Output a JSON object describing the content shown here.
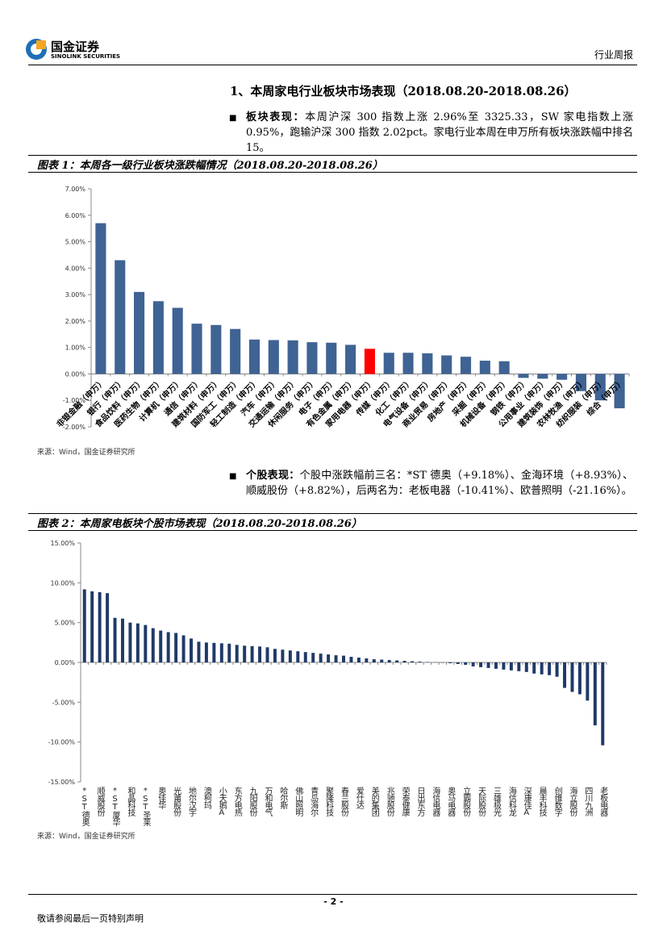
{
  "header": {
    "logo_cn": "国金证券",
    "logo_en": "SINOLINK SECURITIES",
    "report_type": "行业周报"
  },
  "section_title": "1、本周家电行业板块市场表现（2018.08.20-2018.08.26）",
  "paragraphs": [
    {
      "lead": "板块表现：",
      "text": "本周沪深 300 指数上涨 2.96%至 3325.33，SW 家电指数上涨 0.95%，跑输沪深 300 指数 2.02pct。家电行业本周在申万所有板块涨跌幅中排名 15。"
    },
    {
      "lead": "个股表现：",
      "text": "个股中涨跌幅前三名：*ST 德奥（+9.18%）、金海环境（+8.93%）、顺威股份（+8.82%），后两名为：老板电器（-10.41%）、欧普照明（-21.16%）。"
    }
  ],
  "chart_data": [
    {
      "type": "bar",
      "title": "图表 1：本周各一级行业板块涨跌幅情况（2018.08.20-2018.08.26）",
      "source": "来源：Wind，国金证券研究所",
      "categories": [
        "非银金融（申万）",
        "银行（申万）",
        "食品饮料（申万）",
        "医药生物（申万）",
        "计算机（申万）",
        "通信（申万）",
        "建筑材料（申万）",
        "国防军工（申万）",
        "轻工制造（申万）",
        "汽车（申万）",
        "交通运输（申万）",
        "休闲服务（申万）",
        "电子（申万）",
        "有色金属（申万）",
        "家用电器（申万）",
        "传媒（申万）",
        "化工（申万）",
        "电气设备（申万）",
        "商业贸易（申万）",
        "房地产（申万）",
        "采掘（申万）",
        "机械设备（申万）",
        "钢铁（申万）",
        "公用事业（申万）",
        "建筑装饰（申万）",
        "农林牧渔（申万）",
        "纺织服装（申万）",
        "综合（申万）"
      ],
      "values": [
        5.7,
        4.3,
        3.1,
        2.75,
        2.5,
        1.9,
        1.85,
        1.7,
        1.3,
        1.28,
        1.27,
        1.2,
        1.18,
        1.1,
        0.95,
        0.8,
        0.8,
        0.78,
        0.7,
        0.65,
        0.5,
        0.48,
        -0.15,
        -0.18,
        -0.22,
        -0.65,
        -1.0,
        -1.3
      ],
      "colors": [
        "#3f6393",
        "#3f6393",
        "#3f6393",
        "#3f6393",
        "#3f6393",
        "#3f6393",
        "#3f6393",
        "#3f6393",
        "#3f6393",
        "#3f6393",
        "#3f6393",
        "#3f6393",
        "#3f6393",
        "#3f6393",
        "#ff0000",
        "#3f6393",
        "#3f6393",
        "#3f6393",
        "#3f6393",
        "#3f6393",
        "#3f6393",
        "#3f6393",
        "#3f6393",
        "#3f6393",
        "#3f6393",
        "#3f6393",
        "#3f6393",
        "#3f6393"
      ],
      "ylim": [
        -2,
        7
      ],
      "yticks": [
        {
          "value": -2,
          "label": "-2.00%"
        },
        {
          "value": -1,
          "label": "-1.00%"
        },
        {
          "value": 0,
          "label": "0.00%"
        },
        {
          "value": 1,
          "label": "1.00%"
        },
        {
          "value": 2,
          "label": "2.00%"
        },
        {
          "value": 3,
          "label": "3.00%"
        },
        {
          "value": 4,
          "label": "4.00%"
        },
        {
          "value": 5,
          "label": "5.00%"
        },
        {
          "value": 6,
          "label": "6.00%"
        },
        {
          "value": 7,
          "label": "7.00%"
        }
      ],
      "grid": false
    },
    {
      "type": "bar",
      "title": "图表 2：本周家电板块个股市场表现（2018.08.20-2018.08.26）",
      "source": "来源：Wind，国金证券研究所",
      "categories": [
        "*ST德奥",
        null,
        "顺威股份",
        null,
        "*ST厦华",
        null,
        "和晶科技",
        null,
        "*ST圣莱",
        null,
        "奥佳华",
        null,
        "光莆股份",
        null,
        "地尔汉宇",
        null,
        "澳柯玛",
        null,
        "小天鹅A",
        null,
        "东方电热",
        null,
        "九阳股份",
        null,
        "万和电气",
        null,
        "哈尔斯",
        null,
        "佛山照明",
        null,
        "青岛海尔",
        null,
        "聚隆科技",
        null,
        "春兰股份",
        null,
        "爱仕达",
        null,
        "美的集团",
        null,
        "兆驰股份",
        null,
        "荣泰健康",
        null,
        "日出东方",
        null,
        "海信电器",
        null,
        "奥马电器",
        null,
        "立霸股份",
        null,
        "天际股份",
        null,
        "三雄极光",
        null,
        "海信科龙",
        null,
        "深康佳A",
        null,
        "晨丰科技",
        null,
        "创维数字",
        null,
        "海立股份",
        null,
        "四川九洲",
        null,
        "老板电器"
      ],
      "values": [
        9.18,
        8.93,
        8.82,
        8.7,
        5.6,
        5.5,
        5.0,
        4.9,
        4.7,
        4.3,
        4.0,
        3.8,
        3.7,
        3.4,
        3.0,
        2.6,
        2.5,
        2.45,
        2.4,
        2.35,
        2.2,
        2.1,
        2.05,
        2.0,
        1.9,
        1.7,
        1.6,
        1.5,
        1.4,
        1.3,
        1.2,
        1.1,
        1.0,
        0.9,
        0.85,
        0.7,
        0.6,
        0.5,
        0.4,
        0.35,
        0.3,
        0.25,
        0.2,
        0.15,
        0.1,
        0.05,
        0.02,
        -0.05,
        -0.1,
        -0.2,
        -0.3,
        -0.5,
        -0.6,
        -0.7,
        -0.8,
        -0.9,
        -1.0,
        -1.1,
        -1.2,
        -1.4,
        -1.5,
        -1.6,
        -1.8,
        -3.2,
        -3.7,
        -4.0,
        -4.8,
        -7.9,
        -10.41
      ],
      "color": "#1f3a68",
      "ylim": [
        -15,
        15
      ],
      "yticks": [
        {
          "value": -15,
          "label": "-15.00%"
        },
        {
          "value": -10,
          "label": "-10.00%"
        },
        {
          "value": -5,
          "label": "-5.00%"
        },
        {
          "value": 0,
          "label": "0.00%"
        },
        {
          "value": 5,
          "label": "5.00%"
        },
        {
          "value": 10,
          "label": "10.00%"
        },
        {
          "value": 15,
          "label": "15.00%"
        }
      ],
      "grid": false
    }
  ],
  "footer": {
    "page": "- 2 -",
    "disclaimer": "敬请参阅最后一页特别声明"
  }
}
